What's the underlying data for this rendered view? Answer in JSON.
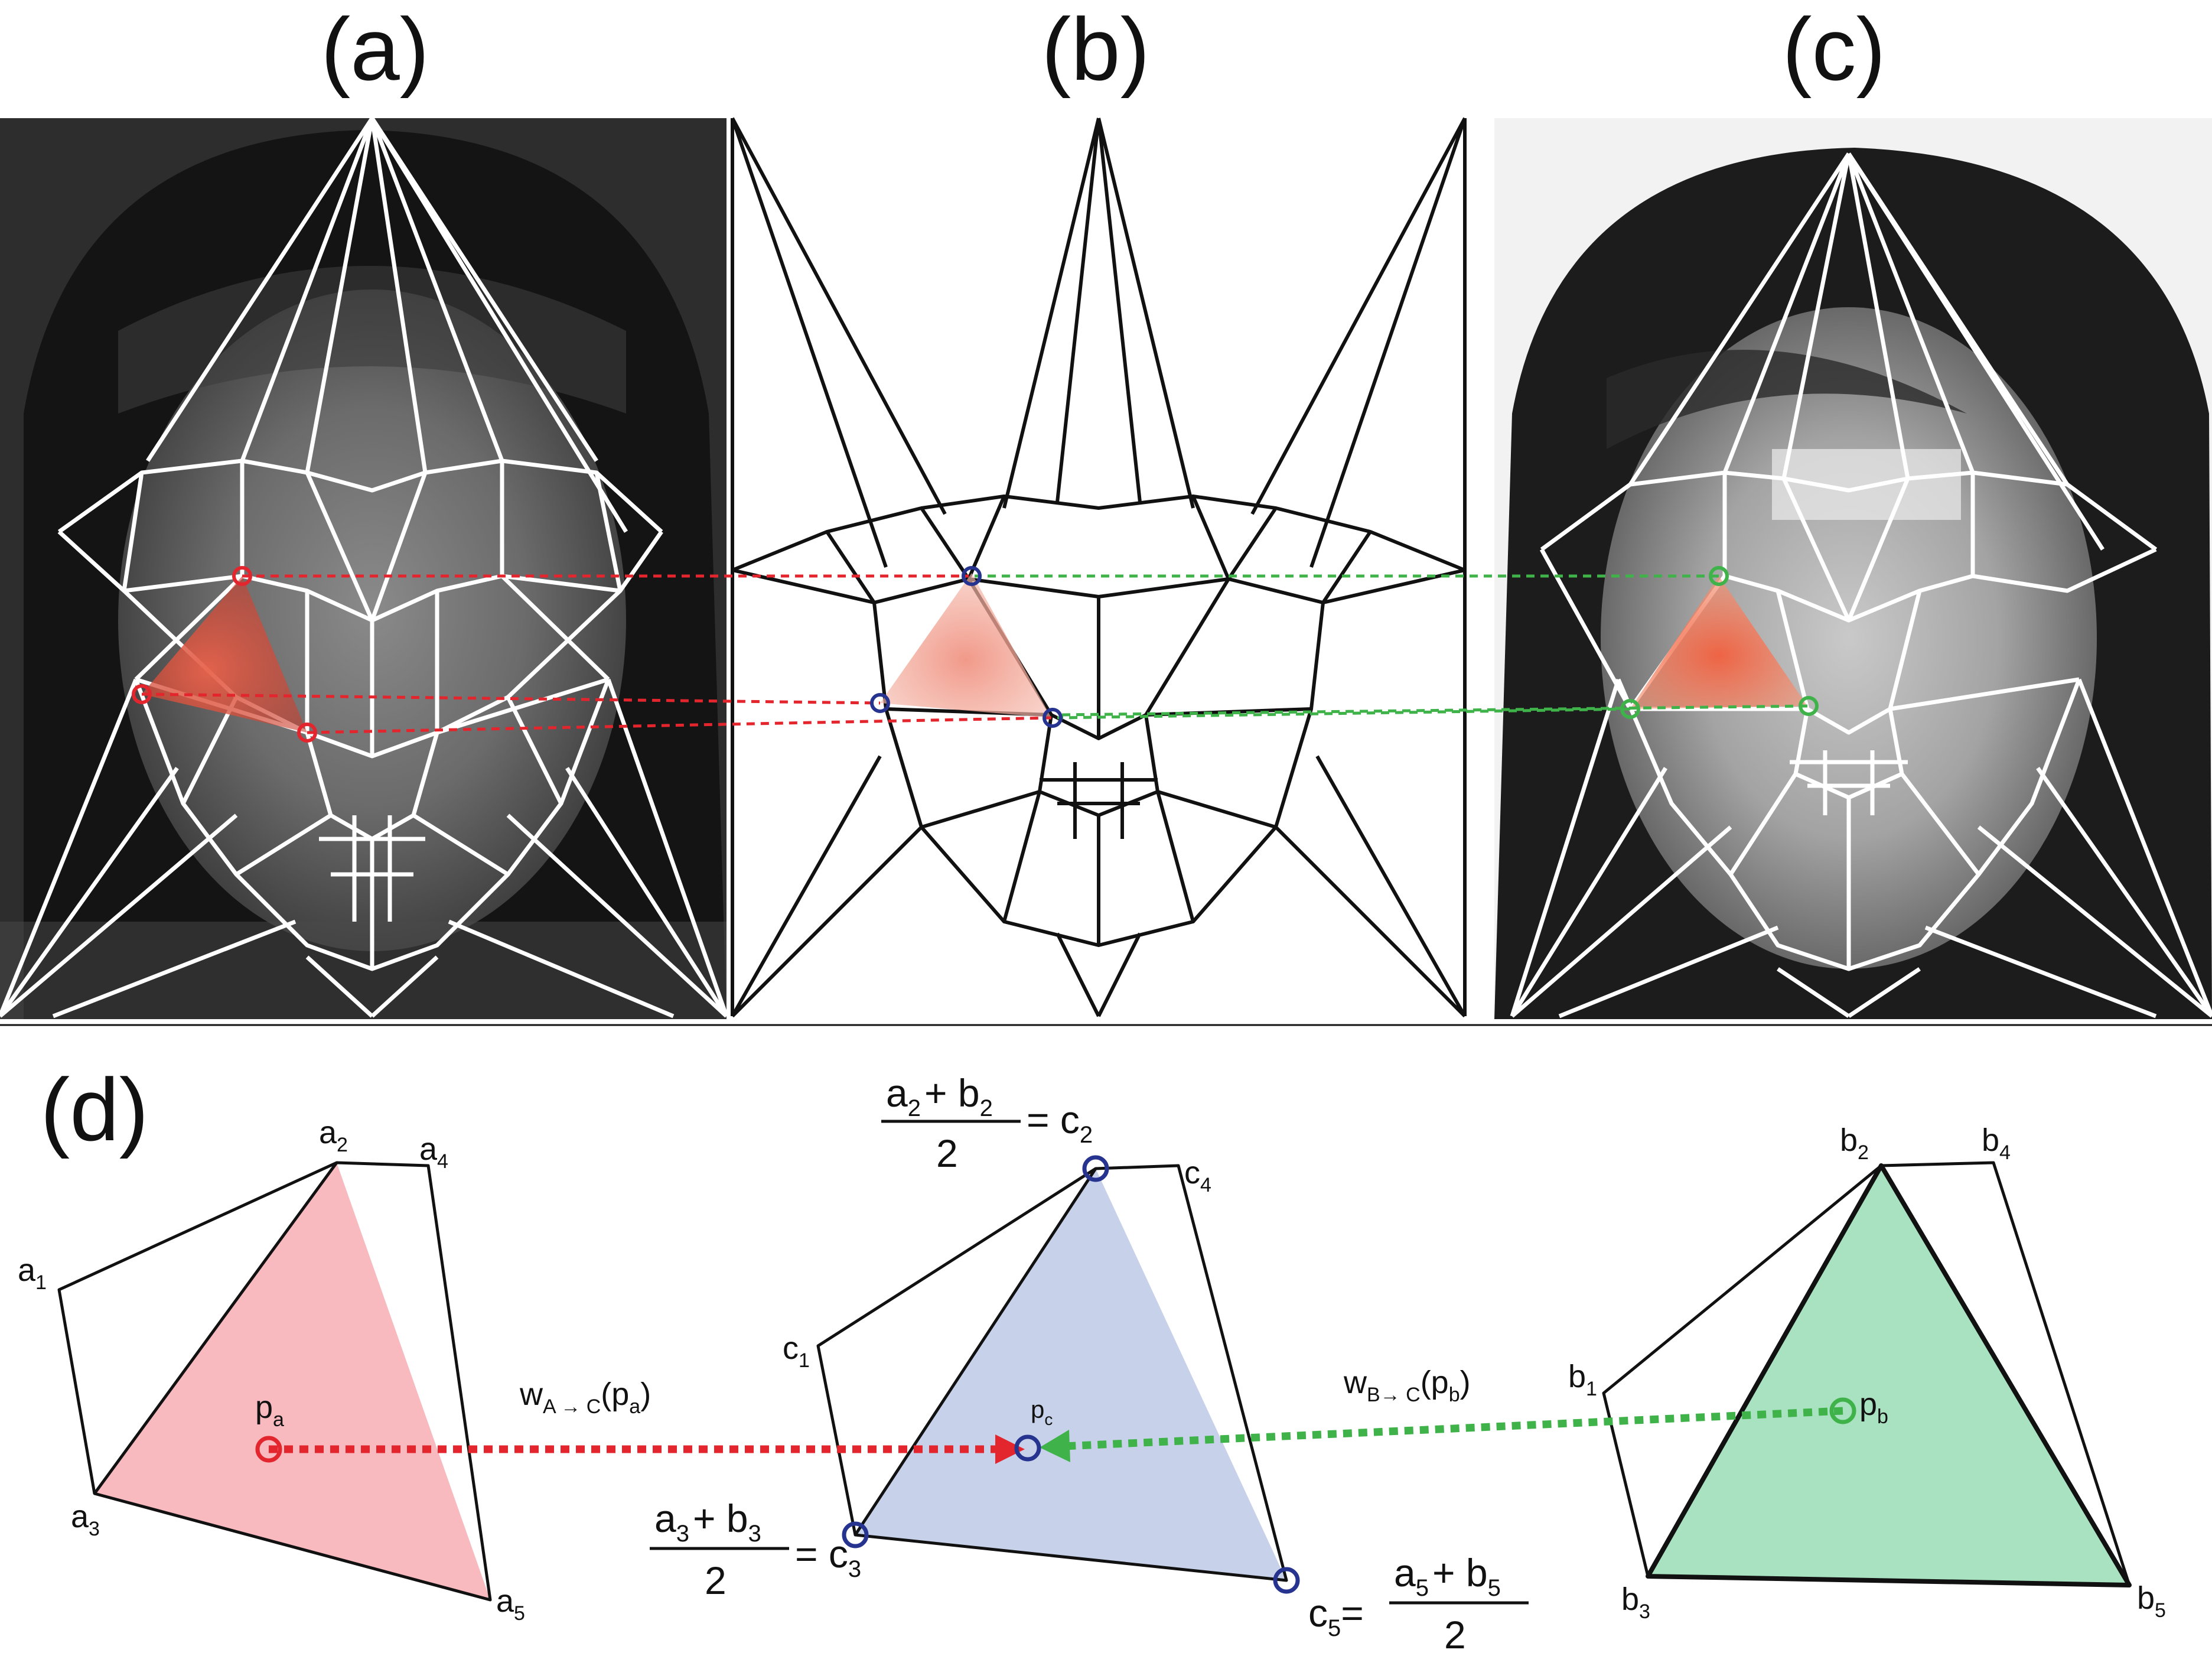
{
  "panels": {
    "a": "(a)",
    "b": "(b)",
    "c": "(c)",
    "d": "(d)"
  },
  "colors": {
    "red": "#e3262e",
    "green": "#3fb34a",
    "blue": "#27348f",
    "red_fill": "#f8b9bf",
    "blue_fill": "#c7d2ea",
    "green_fill": "#a9e2c1",
    "tri_glow": "#e8624b"
  },
  "labels": {
    "a1": {
      "base": "a",
      "sub": "1"
    },
    "a2": {
      "base": "a",
      "sub": "2"
    },
    "a3": {
      "base": "a",
      "sub": "3"
    },
    "a4": {
      "base": "a",
      "sub": "4"
    },
    "a5": {
      "base": "a",
      "sub": "5"
    },
    "b1": {
      "base": "b",
      "sub": "1"
    },
    "b2": {
      "base": "b",
      "sub": "2"
    },
    "b3": {
      "base": "b",
      "sub": "3"
    },
    "b4": {
      "base": "b",
      "sub": "4"
    },
    "b5": {
      "base": "b",
      "sub": "5"
    },
    "c1": {
      "base": "c",
      "sub": "1"
    },
    "c4": {
      "base": "c",
      "sub": "4"
    },
    "pa": {
      "base": "p",
      "sub": "a"
    },
    "pb": {
      "base": "p",
      "sub": "b"
    },
    "pc": {
      "base": "p",
      "sub": "c"
    }
  },
  "warps": {
    "a_to_c": {
      "w": "w",
      "sub": "A → C",
      "arg": "(p",
      "argsub": "a",
      "close": ")"
    },
    "b_to_c": {
      "w": "w",
      "sub": "B→ C",
      "arg": "(p",
      "argsub": "b",
      "close": ")"
    }
  },
  "equations": {
    "c2": {
      "num_a": "a",
      "sub_a": "2",
      "plus": "+ b",
      "sub_b": "2",
      "den": "2",
      "eq": "= c",
      "res_sub": "2"
    },
    "c3": {
      "num_a": "a",
      "sub_a": "3",
      "plus": "+ b",
      "sub_b": "3",
      "den": "2",
      "eq": "= c",
      "res_sub": "3"
    },
    "c5": {
      "lhs": "c",
      "lhs_sub": "5",
      "eq": "=",
      "num_a": "a",
      "sub_a": "5",
      "plus": "+ b",
      "sub_b": "5",
      "den": "2"
    }
  }
}
